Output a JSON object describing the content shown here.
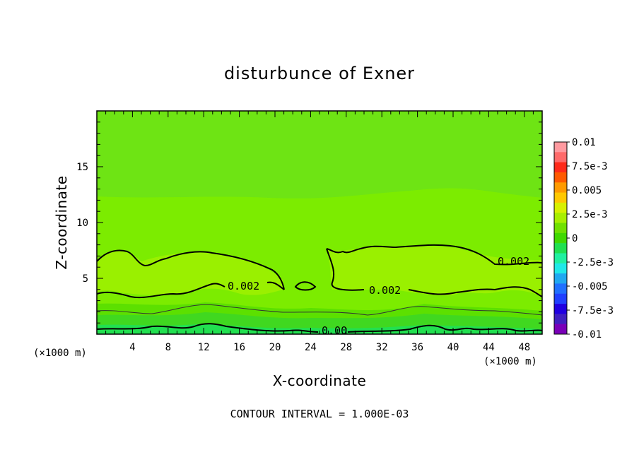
{
  "chart_data": {
    "type": "heatmap",
    "title": "disturbunce of Exner",
    "xlabel": "X-coordinate",
    "ylabel": "Z-coordinate",
    "x_unit": "(×1000 m)",
    "y_unit": "(×1000 m)",
    "xlim": [
      0,
      50
    ],
    "ylim": [
      0,
      20
    ],
    "x_ticks": [
      4,
      8,
      12,
      16,
      20,
      24,
      28,
      32,
      36,
      40,
      44,
      48
    ],
    "y_ticks": [
      5,
      10,
      15
    ],
    "colorbar": {
      "labels": [
        "0.01",
        "7.5e-3",
        "0.005",
        "2.5e-3",
        "0",
        "-2.5e-3",
        "-0.005",
        "-7.5e-3",
        "-0.01"
      ],
      "colors": [
        "#ff9aa0",
        "#ff6a6a",
        "#ff2a1a",
        "#ff5a00",
        "#ff9a00",
        "#ffc800",
        "#d8f000",
        "#a8ee00",
        "#70e000",
        "#40d800",
        "#20e050",
        "#20f0a0",
        "#20e8e8",
        "#20a8f0",
        "#2070ff",
        "#2040ff",
        "#2000e0",
        "#4020c0",
        "#7a00b8"
      ],
      "range": [
        -0.01,
        0.01
      ]
    },
    "contour_labels": [
      {
        "text": "0.002",
        "x": 14.8,
        "z": 4.3
      },
      {
        "text": "0.002",
        "x": 30.8,
        "z": 4.0
      },
      {
        "text": "0.002",
        "x": 45.4,
        "z": 6.6
      },
      {
        "text": "0.00",
        "x": 26.0,
        "z": 0.3
      }
    ],
    "footer": "CONTOUR INTERVAL = 1.000E-03"
  }
}
